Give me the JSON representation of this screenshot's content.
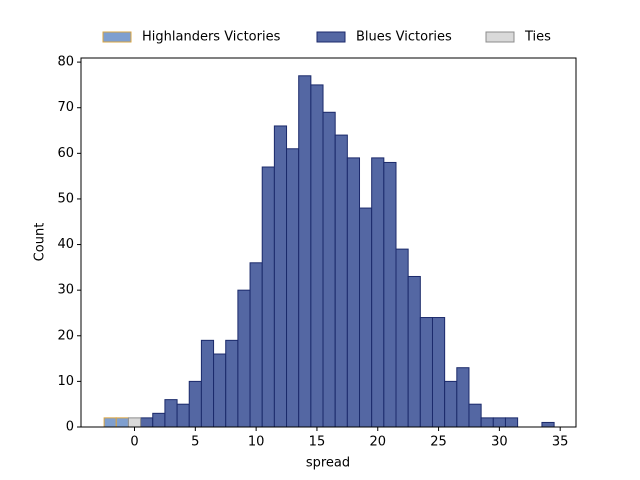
{
  "chart_data": {
    "type": "histogram",
    "xlabel": "spread",
    "ylabel": "Count",
    "bins": [
      -2.5,
      -1.5,
      -0.5,
      0.5,
      1.5,
      2.5,
      3.5,
      4.5,
      5.5,
      6.5,
      7.5,
      8.5,
      9.5,
      10.5,
      11.5,
      12.5,
      13.5,
      14.5,
      15.5,
      16.5,
      17.5,
      18.5,
      19.5,
      20.5,
      21.5,
      22.5,
      23.5,
      24.5,
      25.5,
      26.5,
      27.5,
      28.5,
      29.5,
      30.5,
      31.5,
      32.5,
      33.5,
      34.5
    ],
    "series": [
      {
        "name": "Highlanders Victories",
        "color": "#7f9fcf",
        "edgecolor": "#d9a441",
        "values": [
          2,
          2,
          0,
          0,
          0,
          0,
          0,
          0,
          0,
          0,
          0,
          0,
          0,
          0,
          0,
          0,
          0,
          0,
          0,
          0,
          0,
          0,
          0,
          0,
          0,
          0,
          0,
          0,
          0,
          0,
          0,
          0,
          0,
          0,
          0,
          0,
          0
        ]
      },
      {
        "name": "Blues Victories",
        "color": "#5467a3",
        "edgecolor": "#1b2a6b",
        "values": [
          0,
          0,
          0,
          2,
          3,
          6,
          5,
          10,
          19,
          16,
          19,
          30,
          36,
          57,
          66,
          61,
          77,
          75,
          69,
          64,
          59,
          48,
          59,
          58,
          39,
          33,
          24,
          24,
          10,
          13,
          5,
          2,
          2,
          2,
          0,
          0,
          1
        ]
      },
      {
        "name": "Ties",
        "color": "#d9d9d9",
        "edgecolor": "#8c8c8c",
        "values": [
          0,
          0,
          2,
          0,
          0,
          0,
          0,
          0,
          0,
          0,
          0,
          0,
          0,
          0,
          0,
          0,
          0,
          0,
          0,
          0,
          0,
          0,
          0,
          0,
          0,
          0,
          0,
          0,
          0,
          0,
          0,
          0,
          0,
          0,
          0,
          0,
          0
        ]
      }
    ],
    "xlim": [
      -4.4,
      36.3
    ],
    "ylim": [
      0,
      80.9
    ],
    "xticks": [
      0,
      5,
      10,
      15,
      20,
      25,
      30,
      35
    ],
    "yticks": [
      0,
      10,
      20,
      30,
      40,
      50,
      60,
      70,
      80
    ],
    "legend": "top"
  }
}
